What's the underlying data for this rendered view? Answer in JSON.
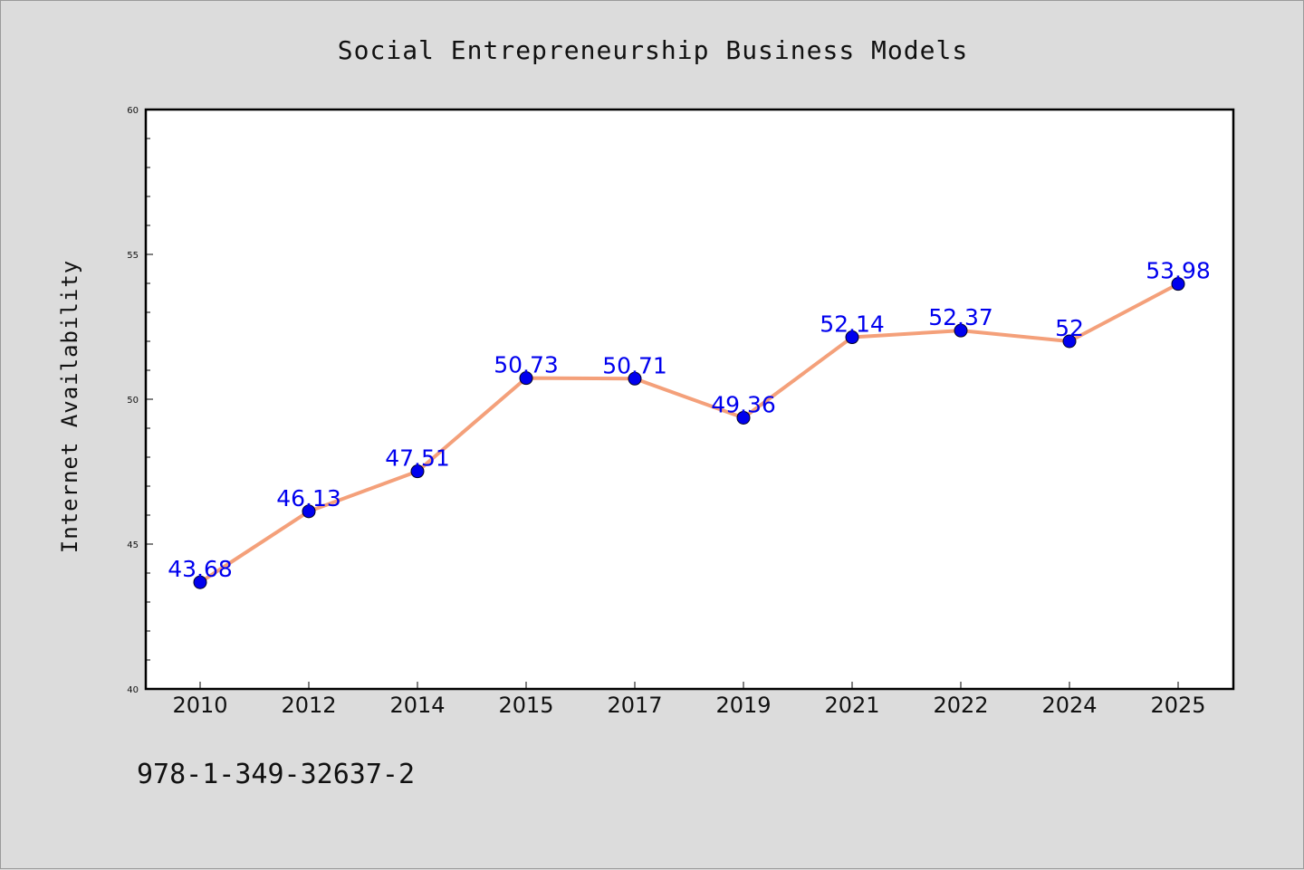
{
  "chart_data": {
    "type": "line",
    "title": "Social Entrepreneurship Business Models",
    "xlabel": "",
    "ylabel": "Internet Availability",
    "categories": [
      "2010",
      "2012",
      "2014",
      "2015",
      "2017",
      "2019",
      "2021",
      "2022",
      "2024",
      "2025"
    ],
    "series": [
      {
        "values": [
          43.68,
          46.13,
          47.51,
          50.73,
          50.71,
          49.36,
          52.14,
          52.37,
          52,
          53.98
        ],
        "data_labels": [
          "43.68",
          "46.13",
          "47.51",
          "50.73",
          "50.71",
          "49.36",
          "52.14",
          "52.37",
          "52",
          "53.98"
        ],
        "line_color": "#f4a07a",
        "marker_color": "#0000ee",
        "label_color": "#0000ee"
      }
    ],
    "ylim": [
      40,
      60
    ],
    "yticks": [
      "40",
      "45",
      "50",
      "55",
      "60"
    ],
    "grid": false,
    "legend": "none"
  },
  "footer": {
    "isbn": "978-1-349-32637-2"
  }
}
